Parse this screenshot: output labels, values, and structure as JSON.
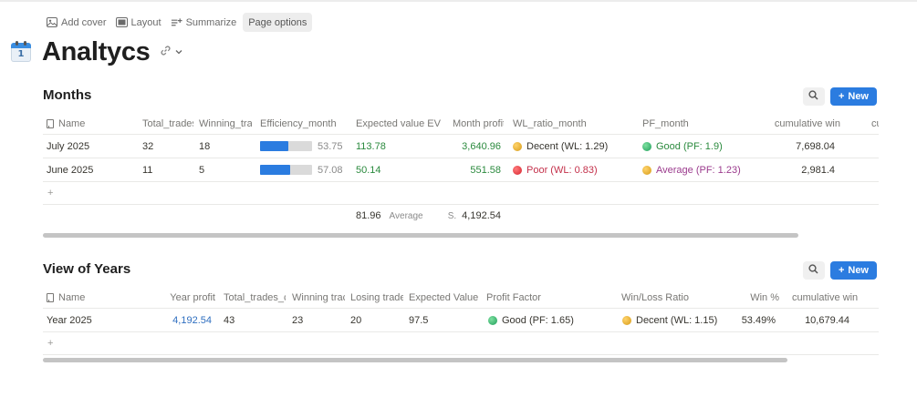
{
  "page_actions": {
    "add_cover": "Add cover",
    "layout": "Layout",
    "summarize": "Summarize",
    "page_options": "Page options"
  },
  "page": {
    "icon": "calendar-icon",
    "icon_day": "1",
    "title": "Analtycs"
  },
  "months": {
    "title": "Months",
    "new_label": "New",
    "columns": [
      "Name",
      "Total_trades",
      "Winning_trac",
      "Efficiency_month",
      "Expected value EV",
      "Month profit",
      "WL_ratio_month",
      "PF_month",
      "cumulative win",
      "cu"
    ],
    "rows": [
      {
        "name": "July 2025",
        "total_trades": "32",
        "winning": "18",
        "efficiency": "53.75",
        "efficiency_pct": 53.75,
        "ev": "113.78",
        "profit": "3,640.96",
        "wl": "Decent (WL: 1.29)",
        "wl_status": "decent",
        "pf": "Good (PF: 1.9)",
        "pf_status": "good",
        "cum": "7,698.04"
      },
      {
        "name": "June 2025",
        "total_trades": "11",
        "winning": "5",
        "efficiency": "57.08",
        "efficiency_pct": 57.08,
        "ev": "50.14",
        "profit": "551.58",
        "wl": "Poor (WL: 0.83)",
        "wl_status": "poor",
        "pf": "Average (PF: 1.23)",
        "pf_status": "average",
        "cum": "2,981.4"
      }
    ],
    "add_symbol": "+",
    "calc": {
      "ev_value": "81.96",
      "ev_label": "Average",
      "profit_label": "S.",
      "profit_value": "4,192.54"
    }
  },
  "years": {
    "title": "View of Years",
    "new_label": "New",
    "columns": [
      "Name",
      "Year profit",
      "Total_trades_c",
      "Winning trac",
      "Losing trade",
      "Expected Value",
      "Profit Factor",
      "Win/Loss Ratio",
      "Win %",
      "cumulative win"
    ],
    "rows": [
      {
        "name": "Year 2025",
        "profit": "4,192.54",
        "total": "43",
        "winning": "23",
        "losing": "20",
        "ev": "97.5",
        "pf": "Good (PF: 1.65)",
        "pf_status": "good",
        "wl": "Decent (WL: 1.15)",
        "wl_status": "decent",
        "win_pct": "53.49%",
        "cum": "10,679.44"
      }
    ],
    "add_symbol": "+"
  },
  "colors": {
    "accent": "#2b7ce0",
    "positive": "#2b8a3e",
    "link": "#2f6fc0",
    "poor": "#c4314b",
    "average": "#9b3b8d"
  }
}
